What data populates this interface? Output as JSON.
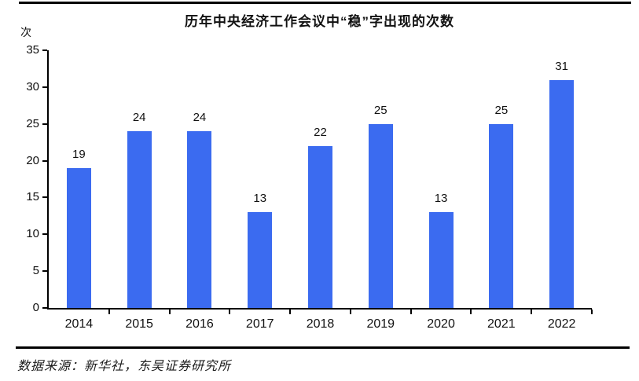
{
  "chart_data": {
    "type": "bar",
    "title": "历年中央经济工作会议中“稳”字出现的次数",
    "unit_label": "次",
    "categories": [
      "2014",
      "2015",
      "2016",
      "2017",
      "2018",
      "2019",
      "2020",
      "2021",
      "2022"
    ],
    "values": [
      19,
      24,
      24,
      13,
      22,
      25,
      13,
      25,
      31
    ],
    "ylim": [
      0,
      35
    ],
    "ytick_step": 5,
    "ytick_labels": [
      "0",
      "5",
      "10",
      "15",
      "20",
      "25",
      "30",
      "35"
    ],
    "bar_color": "#3B6BF0",
    "axis_color": "#000000",
    "grid": false,
    "legend_position": "none",
    "data_labels": true
  },
  "footer": {
    "source_text": "数据来源：新华社，东吴证券研究所"
  }
}
